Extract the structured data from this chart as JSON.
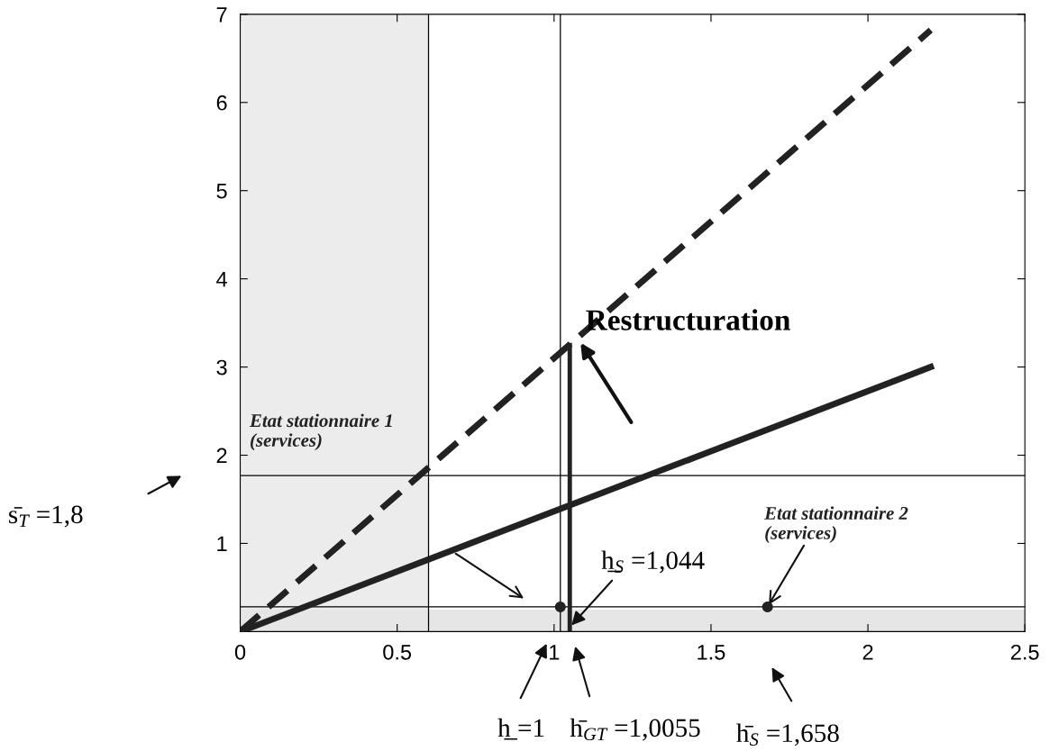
{
  "chart_data": {
    "type": "line",
    "series": [
      {
        "color": "#222222",
        "line_style": "dashed",
        "x": [
          0,
          2.2
        ],
        "values": [
          0,
          6.82
        ]
      },
      {
        "color": "#222222",
        "line_style": "solid",
        "x": [
          0,
          2.2
        ],
        "values": [
          0,
          3.0
        ]
      },
      {
        "color": "#222222",
        "line_style": "solid",
        "x": [
          1.05,
          1.05
        ],
        "values": [
          0,
          3.25
        ]
      },
      {
        "type": "scatter",
        "color": "#222222",
        "marker": "circle",
        "x": [
          1.02,
          1.68
        ],
        "values": [
          0.28,
          0.28
        ]
      }
    ],
    "xlim": [
      0,
      2.5
    ],
    "ylim": [
      0,
      7
    ],
    "xticks": [
      0,
      0.5,
      1,
      1.5,
      2,
      2.5
    ],
    "yticks": [
      1,
      2,
      3,
      4,
      5,
      6,
      7
    ],
    "grid": false,
    "bands": [
      {
        "axis": "x",
        "from": 0,
        "to": 0.6,
        "color": "#ececec"
      },
      {
        "axis": "y",
        "from": 0,
        "to": 0.25,
        "color": "#e6e6e6"
      }
    ],
    "ref_lines": [
      {
        "axis": "y",
        "value": 1.77,
        "color": "#000000",
        "line_style": "solid"
      },
      {
        "axis": "y",
        "value": 0.28,
        "color": "#000000",
        "line_style": "solid"
      },
      {
        "axis": "x",
        "value": 0.6,
        "color": "#000000",
        "line_style": "solid"
      },
      {
        "axis": "x",
        "value": 1.02,
        "color": "#000000",
        "line_style": "solid"
      }
    ],
    "annotations": [
      {
        "text": "Restructuration",
        "x": 1.08,
        "y": 3.3
      },
      "Etat stationnaire 1\n(services)",
      {
        "text": "Etat stationnaire 2\n(services)",
        "x": 1.68,
        "y": 0.28
      },
      {
        "text": "h̲$_{S}$ =1,044",
        "x": 1.05,
        "y": 0.05
      },
      "s̄$_{T}$ =1,8",
      "h̲ =1",
      "h̄$_{GT}$ =1,0055",
      "h̄$_{S}$ =1,658"
    ]
  }
}
